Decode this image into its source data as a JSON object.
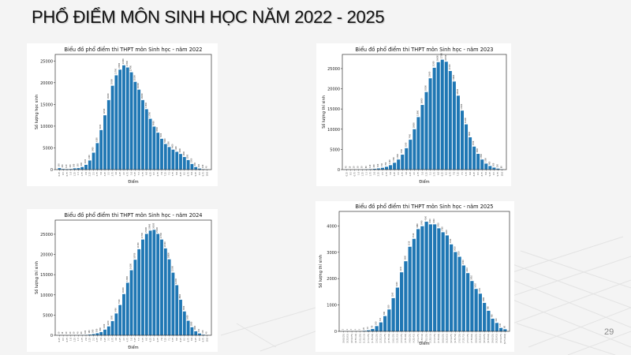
{
  "slide": {
    "title": "PHỔ ĐIỂM MÔN SINH HỌC NĂM 2022 - 2025",
    "page_number": "29"
  },
  "colors": {
    "bar": "#1f77b4",
    "background": "#f4f4f4",
    "card": "#ffffff"
  },
  "chart_data": [
    {
      "type": "bar",
      "title": "Biểu đồ phổ điểm thi THPT môn Sinh học - năm 2022",
      "xlabel": "Điểm",
      "ylabel": "Số lượng học sinh",
      "ylim": [
        0,
        26500
      ],
      "yticks": [
        0,
        5000,
        10000,
        15000,
        20000,
        25000
      ],
      "grid": false,
      "categories": [
        "0.25",
        "0.5",
        "0.75",
        "1.0",
        "1.25",
        "1.5",
        "1.75",
        "2.0",
        "2.25",
        "2.5",
        "2.75",
        "3.0",
        "3.25",
        "3.5",
        "3.75",
        "4.0",
        "4.25",
        "4.5",
        "4.75",
        "5.0",
        "5.25",
        "5.5",
        "5.75",
        "6.0",
        "6.25",
        "6.5",
        "6.75",
        "7.0",
        "7.25",
        "7.5",
        "7.75",
        "8.0",
        "8.25",
        "8.5",
        "8.75",
        "9.0",
        "9.25",
        "9.5",
        "9.75",
        "10.0"
      ],
      "values": [
        350,
        150,
        120,
        150,
        300,
        350,
        600,
        1100,
        2100,
        3900,
        6100,
        9100,
        12500,
        16000,
        19300,
        21700,
        23000,
        24000,
        23500,
        22400,
        20200,
        18400,
        16000,
        13900,
        11700,
        9900,
        8500,
        7100,
        5900,
        5200,
        4600,
        4100,
        3600,
        2900,
        2200,
        1300,
        600,
        250,
        100,
        40
      ]
    },
    {
      "type": "bar",
      "title": "Biểu đồ phổ điểm thi THPT môn Sinh học - năm 2023",
      "xlabel": "Điểm",
      "ylabel": "Số lượng thí sinh",
      "ylim": [
        0,
        28500
      ],
      "yticks": [
        0,
        5000,
        10000,
        15000,
        20000,
        25000
      ],
      "grid": false,
      "categories": [
        "0.25",
        "0.5",
        "0.75",
        "1.0",
        "1.25",
        "1.5",
        "1.75",
        "2.0",
        "2.25",
        "2.5",
        "2.75",
        "3.0",
        "3.25",
        "3.5",
        "3.75",
        "4.0",
        "4.25",
        "4.5",
        "4.75",
        "5.0",
        "5.25",
        "5.5",
        "5.75",
        "6.0",
        "6.25",
        "6.5",
        "6.75",
        "7.0",
        "7.25",
        "7.5",
        "7.75",
        "8.0",
        "8.25",
        "8.5",
        "8.75",
        "9.0",
        "9.25",
        "9.5",
        "9.75",
        "10.0"
      ],
      "values": [
        40,
        10,
        20,
        30,
        50,
        80,
        120,
        200,
        300,
        450,
        700,
        1100,
        1700,
        2500,
        3700,
        5300,
        7400,
        10000,
        13000,
        16000,
        19200,
        22600,
        25200,
        26600,
        27200,
        26700,
        24400,
        21800,
        18300,
        14600,
        11200,
        8000,
        5700,
        3900,
        2500,
        1500,
        900,
        500,
        250,
        80
      ]
    },
    {
      "type": "bar",
      "title": "Biểu đồ phổ điểm thi THPT môn Sinh học - năm 2024",
      "xlabel": "Điểm",
      "ylabel": "Số lượng thí sinh",
      "ylim": [
        0,
        28500
      ],
      "yticks": [
        0,
        5000,
        10000,
        15000,
        20000,
        25000
      ],
      "grid": false,
      "categories": [
        "0.25",
        "0.5",
        "0.75",
        "1.0",
        "1.25",
        "1.5",
        "1.75",
        "2.0",
        "2.25",
        "2.5",
        "2.75",
        "3.0",
        "3.25",
        "3.5",
        "3.75",
        "4.0",
        "4.25",
        "4.5",
        "4.75",
        "5.0",
        "5.25",
        "5.5",
        "5.75",
        "6.0",
        "6.25",
        "6.5",
        "6.75",
        "7.0",
        "7.25",
        "7.5",
        "7.75",
        "8.0",
        "8.25",
        "8.5",
        "8.75",
        "9.0",
        "9.25",
        "9.5",
        "9.75",
        "10.0"
      ],
      "values": [
        30,
        10,
        10,
        20,
        30,
        40,
        60,
        100,
        180,
        300,
        500,
        800,
        1400,
        2200,
        3500,
        5400,
        7500,
        10200,
        13000,
        16100,
        18700,
        21300,
        23700,
        25100,
        25900,
        26100,
        25100,
        23700,
        21500,
        18800,
        15500,
        12400,
        8800,
        5900,
        3600,
        2000,
        1000,
        450,
        150,
        40
      ]
    },
    {
      "type": "bar",
      "title": "Biểu đồ phổ điểm thi THPT môn Sinh học - năm 2025",
      "xlabel": "Điểm",
      "ylabel": "Số lượng thí sinh",
      "ylim": [
        0,
        4550
      ],
      "yticks": [
        0,
        1000,
        2000,
        3000,
        4000
      ],
      "grid": false,
      "categories": [
        "[0.0,0.25)",
        "[0.25,0.5)",
        "[0.5,0.75)",
        "[0.75,1.0)",
        "[1.0,1.25)",
        "[1.25,1.5)",
        "[1.5,1.75)",
        "[1.75,2.0)",
        "[2.0,2.25)",
        "[2.25,2.5)",
        "[2.5,2.75)",
        "[2.75,3.0)",
        "[3.0,3.25)",
        "[3.25,3.5)",
        "[3.5,3.75)",
        "[3.75,4.0)",
        "[4.0,4.25)",
        "[4.25,4.5)",
        "[4.5,4.75)",
        "[4.75,5.0)",
        "[5.0,5.25)",
        "[5.25,5.5)",
        "[5.5,5.75)",
        "[5.75,6.0)",
        "[6.0,6.25)",
        "[6.25,6.5)",
        "[6.5,6.75)",
        "[6.75,7.0)",
        "[7.0,7.25)",
        "[7.25,7.5)",
        "[7.5,7.75)",
        "[7.75,8.0)",
        "[8.0,8.25)",
        "[8.25,8.5)",
        "[8.5,8.75)",
        "[8.75,9.0)",
        "[9.0,9.25)",
        "[9.25,9.5)",
        "[9.5,9.75)",
        "[9.75,10.0]"
      ],
      "values": [
        2,
        2,
        3,
        4,
        5,
        20,
        40,
        90,
        200,
        340,
        580,
        830,
        1260,
        1660,
        2240,
        2660,
        3210,
        3510,
        3880,
        3990,
        4160,
        4060,
        4060,
        3910,
        3760,
        3640,
        3300,
        3010,
        2830,
        2500,
        2210,
        1910,
        1610,
        1430,
        1080,
        780,
        480,
        320,
        130,
        80
      ]
    }
  ]
}
